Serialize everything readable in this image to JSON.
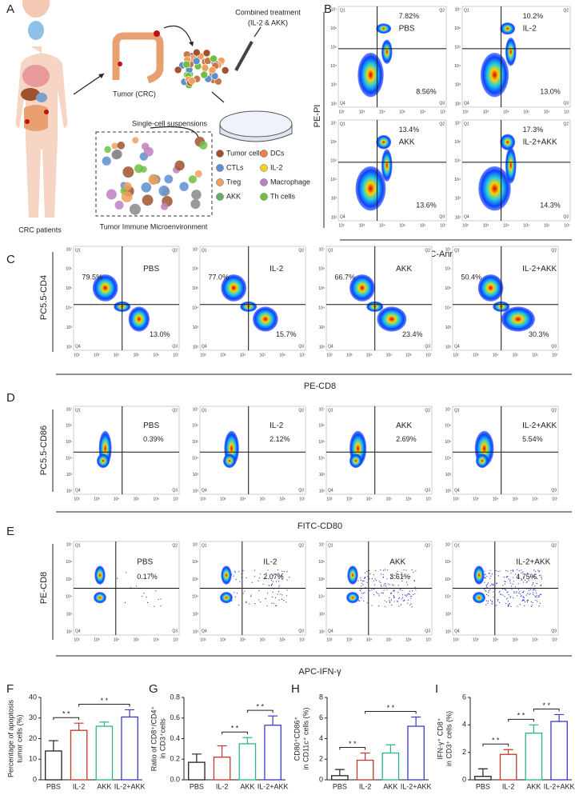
{
  "panel_labels": [
    "A",
    "B",
    "C",
    "D",
    "E",
    "F",
    "G",
    "H",
    "I"
  ],
  "diagram": {
    "patients": "CRC patients",
    "tumor": "Tumor (CRC)",
    "treatment": [
      "Combined treatment",
      "(IL-2 & AKK)"
    ],
    "suspensions": "Single-cell suspensions",
    "microenvironment": "Tumor Immune Microenvironment",
    "legend": [
      "Tumor cells",
      "DCs",
      "CTLs",
      "IL-2",
      "Treg",
      "Macrophage",
      "AKK",
      "Th cells"
    ]
  },
  "flow": {
    "quadrants": [
      "Q1",
      "Q2",
      "Q4",
      "Q3"
    ],
    "ticks": [
      "10²",
      "10³",
      "10⁴",
      "10⁵",
      "10⁶",
      "10⁷"
    ],
    "rows": [
      {
        "ylabel": "PE-PI",
        "xlabel": "FITC-Annexin V",
        "plots": [
          {
            "group": "PBS",
            "q2": "7.82%",
            "q3": "8.56%"
          },
          {
            "group": "IL-2",
            "q2": "10.2%",
            "q3": "13.0%"
          },
          {
            "group": "AKK",
            "q2": "13.4%",
            "q3": "13.6%"
          },
          {
            "group": "IL-2+AKK",
            "q2": "17.3%",
            "q3": "14.3%"
          }
        ]
      },
      {
        "ylabel": "PC5.5-CD4",
        "xlabel": "PE-CD8",
        "plots": [
          {
            "group": "PBS",
            "q1": "79.5%",
            "q3": "13.0%"
          },
          {
            "group": "IL-2",
            "q1": "77.0%",
            "q3": "15.7%"
          },
          {
            "group": "AKK",
            "q1": "66.7%",
            "q3": "23.4%"
          },
          {
            "group": "IL-2+AKK",
            "q1": "50.4%",
            "q3": "30.3%"
          }
        ]
      },
      {
        "ylabel": "PC5.5-CD86",
        "xlabel": "FITC-CD80",
        "plots": [
          {
            "group": "PBS",
            "q2": "0.39%"
          },
          {
            "group": "IL-2",
            "q2": "2.12%"
          },
          {
            "group": "AKK",
            "q2": "2.69%"
          },
          {
            "group": "IL-2+AKK",
            "q2": "5.54%"
          }
        ]
      },
      {
        "ylabel": "PE-CD8",
        "xlabel": "APC-IFN-γ",
        "plots": [
          {
            "group": "PBS",
            "q2": "0.17%"
          },
          {
            "group": "IL-2",
            "q2": "2.07%"
          },
          {
            "group": "AKK",
            "q2": "3.61%"
          },
          {
            "group": "IL-2+AKK",
            "q2": "4.75%"
          }
        ]
      }
    ]
  },
  "chart_data": [
    {
      "type": "bar",
      "ylabel": [
        "Percentage of apoptosis",
        "tumor cells (%)"
      ],
      "categories": [
        "PBS",
        "IL-2",
        "AKK",
        "IL-2+AKK"
      ],
      "values": [
        14,
        24,
        26,
        30.5
      ],
      "errors": [
        5,
        3.5,
        2,
        3.5
      ],
      "colors": [
        "#222222",
        "#c0392b",
        "#2bb48a",
        "#3a3acc"
      ],
      "ylim": [
        0,
        40
      ],
      "yticks": [
        0,
        10,
        20,
        30,
        40
      ],
      "brackets": [
        {
          "label": "* *",
          "between": [
            "PBS",
            "IL-2"
          ]
        },
        {
          "label": "* *",
          "between": [
            "IL-2",
            "IL-2+AKK"
          ]
        }
      ]
    },
    {
      "type": "bar",
      "ylabel": [
        "Ratio of CD8⁺/CD4⁺",
        "in CD3⁺cells"
      ],
      "categories": [
        "PBS",
        "IL-2",
        "AKK",
        "IL-2+AKK"
      ],
      "values": [
        0.17,
        0.22,
        0.35,
        0.53
      ],
      "errors": [
        0.08,
        0.11,
        0.06,
        0.09
      ],
      "colors": [
        "#222222",
        "#c0392b",
        "#2bb48a",
        "#3a3acc"
      ],
      "ylim": [
        0,
        0.8
      ],
      "yticks": [
        {
          "value": 0,
          "label": "0.0"
        },
        0.2,
        0.4,
        0.6,
        0.8
      ],
      "brackets": [
        {
          "label": "* *",
          "between": [
            "IL-2",
            "AKK"
          ]
        },
        {
          "label": "* *",
          "between": [
            "AKK",
            "IL-2+AKK"
          ]
        }
      ]
    },
    {
      "type": "bar",
      "ylabel": [
        "CD80⁺CD86⁺",
        "in CD11c⁺ cells (%)"
      ],
      "categories": [
        "PBS",
        "IL-2",
        "AKK",
        "IL-2+AKK"
      ],
      "values": [
        0.4,
        1.9,
        2.6,
        5.2
      ],
      "errors": [
        0.6,
        0.7,
        0.8,
        0.9
      ],
      "colors": [
        "#222222",
        "#c0392b",
        "#2bb48a",
        "#3a3acc"
      ],
      "ylim": [
        0,
        8
      ],
      "yticks": [
        0,
        2,
        4,
        6,
        8
      ],
      "brackets": [
        {
          "label": "* *",
          "between": [
            "PBS",
            "IL-2"
          ]
        },
        {
          "label": "* *",
          "between": [
            "IL-2",
            "IL-2+AKK"
          ]
        }
      ]
    },
    {
      "type": "bar",
      "ylabel": [
        "IFN-γ⁺ CD8⁺",
        "in CD3⁺ cells (%)"
      ],
      "categories": [
        "PBS",
        "IL-2",
        "AKK",
        "IL-2+AKK"
      ],
      "values": [
        0.25,
        1.85,
        3.4,
        4.25
      ],
      "errors": [
        0.55,
        0.35,
        0.6,
        0.5
      ],
      "colors": [
        "#222222",
        "#c0392b",
        "#2bb48a",
        "#3a3acc"
      ],
      "ylim": [
        0,
        6
      ],
      "yticks": [
        0,
        2,
        4,
        6
      ],
      "brackets": [
        {
          "label": "* *",
          "between": [
            "PBS",
            "IL-2"
          ]
        },
        {
          "label": "* *",
          "between": [
            "IL-2",
            "AKK"
          ]
        },
        {
          "label": "* *",
          "between": [
            "AKK",
            "IL-2+AKK"
          ]
        }
      ]
    }
  ]
}
